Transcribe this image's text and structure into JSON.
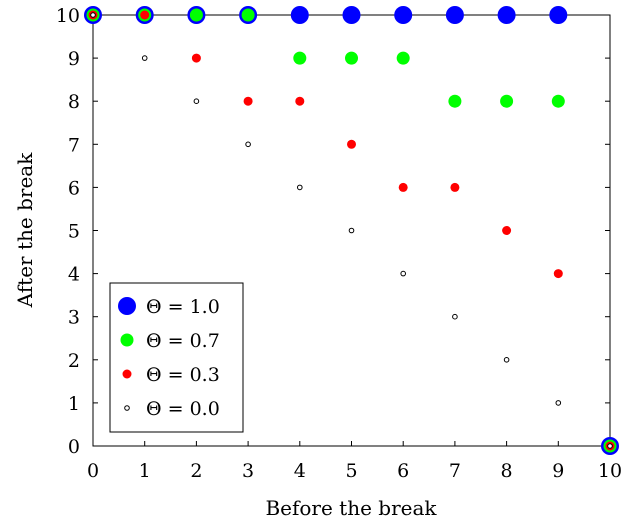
{
  "chart_data": {
    "type": "scatter",
    "title": "",
    "xlabel": "Before the break",
    "ylabel": "After the break",
    "xlim": [
      0,
      10
    ],
    "ylim": [
      0,
      10
    ],
    "xticks": [
      0,
      1,
      2,
      3,
      4,
      5,
      6,
      7,
      8,
      9,
      10
    ],
    "yticks": [
      0,
      1,
      2,
      3,
      4,
      5,
      6,
      7,
      8,
      9,
      10
    ],
    "grid": false,
    "legend_position": "bottom-left",
    "series": [
      {
        "name": "Θ = 1.0",
        "color": "#0000ff",
        "marker": "large-filled-circle",
        "points": [
          [
            0,
            10
          ],
          [
            1,
            10
          ],
          [
            2,
            10
          ],
          [
            3,
            10
          ],
          [
            4,
            10
          ],
          [
            5,
            10
          ],
          [
            6,
            10
          ],
          [
            7,
            10
          ],
          [
            8,
            10
          ],
          [
            9,
            10
          ],
          [
            10,
            0
          ]
        ]
      },
      {
        "name": "Θ = 0.7",
        "color": "#00ff00",
        "marker": "medium-filled-circle",
        "points": [
          [
            0,
            10
          ],
          [
            1,
            10
          ],
          [
            2,
            10
          ],
          [
            3,
            10
          ],
          [
            4,
            9
          ],
          [
            5,
            9
          ],
          [
            6,
            9
          ],
          [
            7,
            8
          ],
          [
            8,
            8
          ],
          [
            9,
            8
          ],
          [
            10,
            0
          ]
        ]
      },
      {
        "name": "Θ = 0.3",
        "color": "#ff0000",
        "marker": "small-filled-circle",
        "points": [
          [
            0,
            10
          ],
          [
            1,
            10
          ],
          [
            2,
            9
          ],
          [
            3,
            8
          ],
          [
            4,
            8
          ],
          [
            5,
            7
          ],
          [
            6,
            6
          ],
          [
            7,
            6
          ],
          [
            8,
            5
          ],
          [
            9,
            4
          ],
          [
            10,
            0
          ]
        ]
      },
      {
        "name": "Θ = 0.0",
        "color": "#000000",
        "marker": "tiny-open-circle",
        "points": [
          [
            0,
            10
          ],
          [
            1,
            9
          ],
          [
            2,
            8
          ],
          [
            3,
            7
          ],
          [
            4,
            6
          ],
          [
            5,
            5
          ],
          [
            6,
            4
          ],
          [
            7,
            3
          ],
          [
            8,
            2
          ],
          [
            9,
            1
          ],
          [
            10,
            0
          ]
        ]
      }
    ]
  }
}
